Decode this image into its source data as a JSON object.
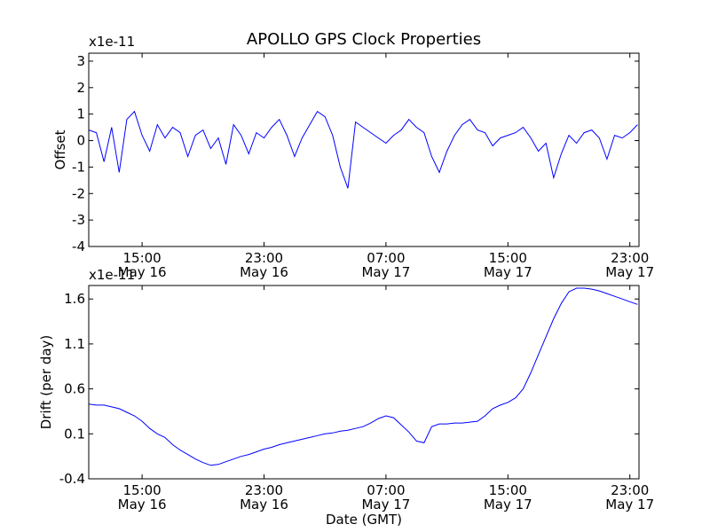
{
  "chart_data": [
    {
      "type": "line",
      "title": "APOLLO GPS Clock Properties",
      "ylabel": "Offset",
      "xlabel": "",
      "y_multiplier": "x1e-11",
      "ylim": [
        -4,
        3.3
      ],
      "yticks": [
        "3",
        "2",
        "1",
        "0",
        "-1",
        "-2",
        "-3",
        "-4"
      ],
      "xticks": [
        {
          "time": "15:00",
          "date": "May 16"
        },
        {
          "time": "23:00",
          "date": "May 16"
        },
        {
          "time": "07:00",
          "date": "May 17"
        },
        {
          "time": "15:00",
          "date": "May 17"
        },
        {
          "time": "23:00",
          "date": "May 17"
        }
      ],
      "x_hours_range": [
        11.5,
        47.6
      ],
      "grid": false,
      "color": "#0000ff",
      "series": [
        {
          "x": [
            11.5,
            12.0,
            12.5,
            13.0,
            13.5,
            14.0,
            14.5,
            15.0,
            15.5,
            16.0,
            16.5,
            17.0,
            17.5,
            18.0,
            18.5,
            19.0,
            19.5,
            20.0,
            20.5,
            21.0,
            21.5,
            22.0,
            22.5,
            23.0,
            23.5,
            24.0,
            24.5,
            25.0,
            25.5,
            26.0,
            26.5,
            27.0,
            27.5,
            28.0,
            28.5,
            29.0,
            29.5,
            30.0,
            30.5,
            31.0,
            31.5,
            32.0,
            32.5,
            33.0,
            33.5,
            34.0,
            34.5,
            35.0,
            35.5,
            36.0,
            36.5,
            37.0,
            37.5,
            38.0,
            38.5,
            39.0,
            39.5,
            40.0,
            40.5,
            41.0,
            41.5,
            42.0,
            42.5,
            43.0,
            43.5,
            44.0,
            44.5,
            45.0,
            45.5,
            46.0,
            46.5,
            47.0,
            47.5
          ],
          "y": [
            0.4,
            0.3,
            -0.8,
            0.5,
            -1.2,
            0.8,
            1.1,
            0.2,
            -0.4,
            0.6,
            0.1,
            0.5,
            0.3,
            -0.6,
            0.2,
            0.4,
            -0.3,
            0.1,
            -0.9,
            0.6,
            0.2,
            -0.5,
            0.3,
            0.1,
            0.5,
            0.8,
            0.2,
            -0.6,
            0.1,
            0.6,
            1.1,
            0.9,
            0.2,
            -1.0,
            -1.8,
            0.7,
            0.5,
            0.3,
            0.1,
            -0.1,
            0.2,
            0.4,
            0.8,
            0.5,
            0.3,
            -0.6,
            -1.2,
            -0.4,
            0.2,
            0.6,
            0.8,
            0.4,
            0.3,
            -0.2,
            0.1,
            0.2,
            0.3,
            0.5,
            0.1,
            -0.4,
            -0.1,
            -1.4,
            -0.5,
            0.2,
            -0.1,
            0.3,
            0.4,
            0.1,
            -0.7,
            0.2,
            0.1,
            0.3,
            0.6
          ]
        }
      ]
    },
    {
      "type": "line",
      "title": "",
      "ylabel": "Drift (per day)",
      "xlabel": "Date (GMT)",
      "y_multiplier": "x1e-11",
      "ylim": [
        -0.4,
        1.75
      ],
      "yticks": [
        "1.6",
        "1.1",
        "0.6",
        "0.1",
        "-0.4"
      ],
      "xticks": [
        {
          "time": "15:00",
          "date": "May 16"
        },
        {
          "time": "23:00",
          "date": "May 16"
        },
        {
          "time": "07:00",
          "date": "May 17"
        },
        {
          "time": "15:00",
          "date": "May 17"
        },
        {
          "time": "23:00",
          "date": "May 17"
        }
      ],
      "x_hours_range": [
        11.5,
        47.6
      ],
      "grid": false,
      "color": "#0000ff",
      "series": [
        {
          "x": [
            11.5,
            12.0,
            12.5,
            13.0,
            13.5,
            14.0,
            14.5,
            15.0,
            15.5,
            16.0,
            16.5,
            17.0,
            17.5,
            18.0,
            18.5,
            19.0,
            19.5,
            20.0,
            20.5,
            21.0,
            21.5,
            22.0,
            22.5,
            23.0,
            23.5,
            24.0,
            24.5,
            25.0,
            25.5,
            26.0,
            26.5,
            27.0,
            27.5,
            28.0,
            28.5,
            29.0,
            29.5,
            30.0,
            30.5,
            31.0,
            31.5,
            32.0,
            32.5,
            33.0,
            33.5,
            34.0,
            34.5,
            35.0,
            35.5,
            36.0,
            36.5,
            37.0,
            37.5,
            38.0,
            38.5,
            39.0,
            39.5,
            40.0,
            40.5,
            41.0,
            41.5,
            42.0,
            42.5,
            43.0,
            43.5,
            44.0,
            44.5,
            45.0,
            45.5,
            46.0,
            46.5,
            47.0,
            47.5
          ],
          "y": [
            0.43,
            0.42,
            0.42,
            0.4,
            0.38,
            0.34,
            0.3,
            0.24,
            0.16,
            0.1,
            0.06,
            -0.02,
            -0.08,
            -0.13,
            -0.18,
            -0.22,
            -0.25,
            -0.24,
            -0.21,
            -0.18,
            -0.15,
            -0.13,
            -0.1,
            -0.07,
            -0.05,
            -0.02,
            0.0,
            0.02,
            0.04,
            0.06,
            0.08,
            0.1,
            0.11,
            0.13,
            0.14,
            0.16,
            0.18,
            0.22,
            0.27,
            0.3,
            0.28,
            0.2,
            0.12,
            0.02,
            0.0,
            0.18,
            0.21,
            0.21,
            0.22,
            0.22,
            0.23,
            0.24,
            0.3,
            0.38,
            0.42,
            0.45,
            0.5,
            0.6,
            0.78,
            0.98,
            1.18,
            1.38,
            1.55,
            1.68,
            1.72,
            1.72,
            1.71,
            1.69,
            1.66,
            1.63,
            1.6,
            1.57,
            1.54
          ]
        }
      ]
    }
  ]
}
